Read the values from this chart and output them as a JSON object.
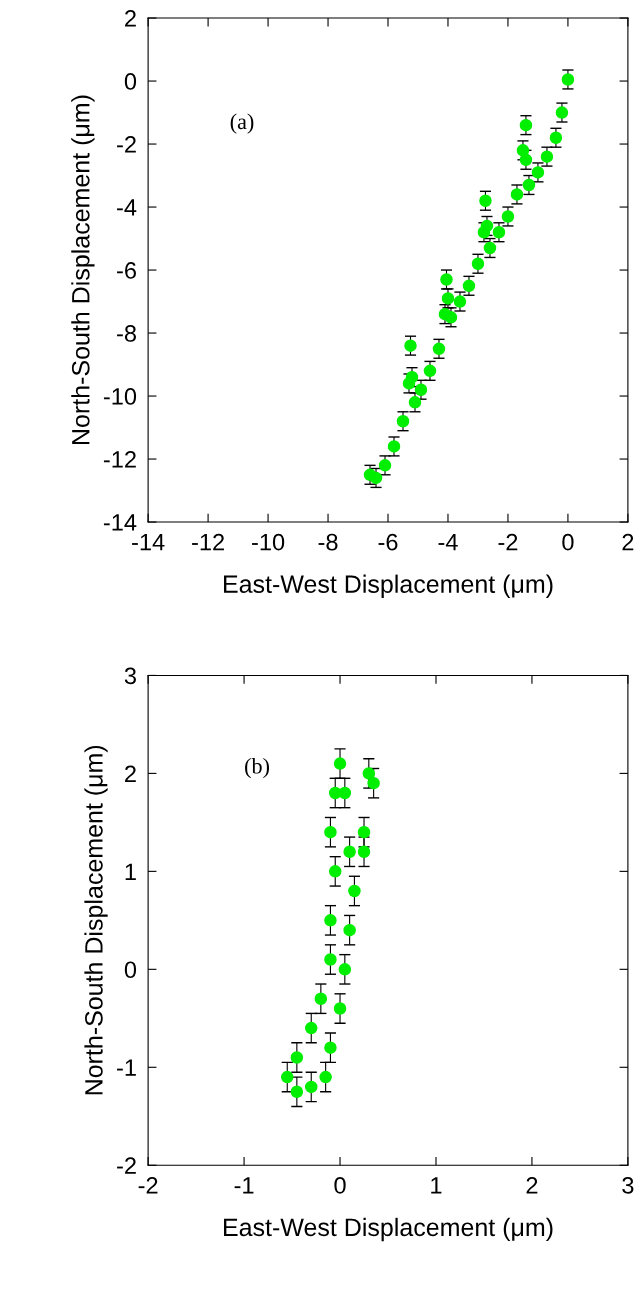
{
  "chart_data": [
    {
      "type": "scatter",
      "xlabel": "East-West Displacement (μm)",
      "ylabel": "North-South Displacement (μm)",
      "annotations": [
        "(a)"
      ],
      "xlim": [
        -14,
        2
      ],
      "ylim": [
        -14,
        2
      ],
      "xticks": [
        -14,
        -12,
        -10,
        -8,
        -6,
        -4,
        -2,
        0,
        2
      ],
      "yticks": [
        -14,
        -12,
        -10,
        -8,
        -6,
        -4,
        -2,
        0,
        2
      ],
      "marker": "circle",
      "grid": false,
      "series": [
        {
          "color": "#00ee00",
          "x": [
            0,
            -0.2,
            -0.4,
            -0.7,
            -1.0,
            -1.3,
            -1.4,
            -1.4,
            -1.5,
            -1.7,
            -2.0,
            -2.3,
            -2.6,
            -2.7,
            -2.75,
            -2.8,
            -3.0,
            -3.3,
            -3.6,
            -3.9,
            -4.0,
            -4.05,
            -4.1,
            -4.3,
            -4.6,
            -4.9,
            -5.1,
            -5.2,
            -5.25,
            -5.3,
            -5.5,
            -5.8,
            -6.1,
            -6.4,
            -6.6
          ],
          "values": [
            0.05,
            -1.0,
            -1.8,
            -2.4,
            -2.9,
            -3.3,
            -2.5,
            -1.4,
            -2.2,
            -3.6,
            -4.3,
            -4.8,
            -5.3,
            -4.6,
            -3.8,
            -4.8,
            -5.8,
            -6.5,
            -7.0,
            -7.5,
            -6.9,
            -6.3,
            -7.4,
            -8.5,
            -9.2,
            -9.8,
            -10.2,
            -9.4,
            -8.4,
            -9.6,
            -10.8,
            -11.6,
            -12.2,
            -12.6,
            -12.5
          ],
          "errors": [
            0.3,
            0.3,
            0.3,
            0.3,
            0.3,
            0.3,
            0.3,
            0.3,
            0.3,
            0.3,
            0.3,
            0.3,
            0.3,
            0.3,
            0.3,
            0.3,
            0.3,
            0.3,
            0.3,
            0.3,
            0.3,
            0.3,
            0.3,
            0.3,
            0.3,
            0.3,
            0.3,
            0.3,
            0.3,
            0.3,
            0.3,
            0.3,
            0.3,
            0.3,
            0.3
          ]
        }
      ]
    },
    {
      "type": "scatter",
      "xlabel": "East-West Displacement (μm)",
      "ylabel": "North-South Displacement (μm)",
      "annotations": [
        "(b)"
      ],
      "xlim": [
        -2,
        3
      ],
      "ylim": [
        -2,
        3
      ],
      "xticks": [
        -2,
        -1,
        0,
        1,
        2,
        3
      ],
      "yticks": [
        -2,
        -1,
        0,
        1,
        2,
        3
      ],
      "marker": "circle",
      "grid": false,
      "series": [
        {
          "color": "#00ee00",
          "x": [
            -0.55,
            -0.45,
            -0.3,
            -0.2,
            -0.1,
            -0.1,
            -0.05,
            -0.1,
            -0.05,
            0.0,
            0.05,
            0.1,
            0.15,
            0.25,
            0.3,
            0.35,
            0.25,
            0.1,
            0.05,
            0.0,
            -0.1,
            -0.15,
            -0.3,
            -0.45
          ],
          "values": [
            -1.1,
            -0.9,
            -0.6,
            -0.3,
            0.1,
            0.5,
            1.0,
            1.4,
            1.8,
            2.1,
            1.8,
            1.2,
            0.8,
            1.4,
            2.0,
            1.9,
            1.2,
            0.4,
            0.0,
            -0.4,
            -0.8,
            -1.1,
            -1.2,
            -1.25
          ],
          "errors": [
            0.15,
            0.15,
            0.15,
            0.15,
            0.15,
            0.15,
            0.15,
            0.15,
            0.15,
            0.15,
            0.15,
            0.15,
            0.15,
            0.15,
            0.15,
            0.15,
            0.15,
            0.15,
            0.15,
            0.15,
            0.15,
            0.15,
            0.15,
            0.15
          ]
        }
      ]
    }
  ]
}
